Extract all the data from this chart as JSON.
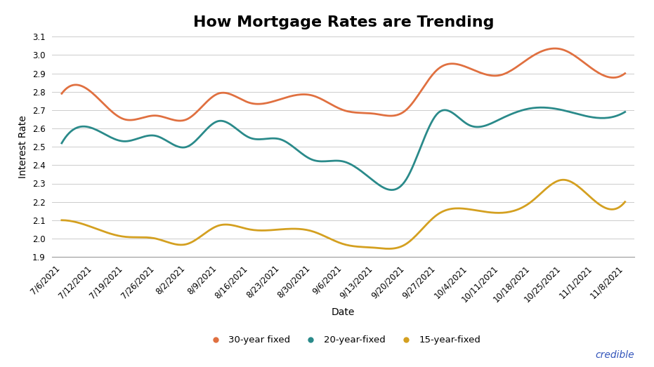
{
  "title": "How Mortgage Rates are Trending",
  "xlabel": "Date",
  "ylabel": "Interest Rate",
  "ylim": [
    1.9,
    3.1
  ],
  "yticks": [
    1.9,
    2.0,
    2.1,
    2.2,
    2.3,
    2.4,
    2.5,
    2.6,
    2.7,
    2.8,
    2.9,
    3.0,
    3.1
  ],
  "dates": [
    "7/6/2021",
    "7/12/2021",
    "7/19/2021",
    "7/26/2021",
    "8/2/2021",
    "8/9/2021",
    "8/16/2021",
    "8/23/2021",
    "8/30/2021",
    "9/6/2021",
    "9/13/2021",
    "9/20/2021",
    "9/27/2021",
    "10/4/2021",
    "10/11/2021",
    "10/18/2021",
    "10/25/2021",
    "11/1/2021",
    "11/8/2021"
  ],
  "series_30yr": [
    2.79,
    2.79,
    2.65,
    2.67,
    2.65,
    2.79,
    2.74,
    2.76,
    2.78,
    2.7,
    2.68,
    2.7,
    2.92,
    2.93,
    2.89,
    2.99,
    3.03,
    2.92,
    2.9
  ],
  "series_20yr": [
    2.52,
    2.6,
    2.53,
    2.56,
    2.5,
    2.64,
    2.55,
    2.54,
    2.43,
    2.42,
    2.31,
    2.32,
    2.68,
    2.62,
    2.65,
    2.71,
    2.7,
    2.66,
    2.69
  ],
  "series_15yr": [
    2.1,
    2.06,
    2.01,
    2.0,
    1.97,
    2.07,
    2.05,
    2.05,
    2.04,
    1.97,
    1.95,
    1.97,
    2.13,
    2.16,
    2.14,
    2.2,
    2.32,
    2.21,
    2.2
  ],
  "color_30yr": "#E07040",
  "color_20yr": "#2A8A8A",
  "color_15yr": "#D4A020",
  "legend_labels": [
    "30-year fixed",
    "20-year-fixed",
    "15-year-fixed"
  ],
  "background_color": "#ffffff",
  "grid_color": "#cccccc",
  "credible_color": "#3355bb",
  "title_fontsize": 16,
  "label_fontsize": 10,
  "tick_fontsize": 8.5,
  "legend_fontsize": 9.5
}
